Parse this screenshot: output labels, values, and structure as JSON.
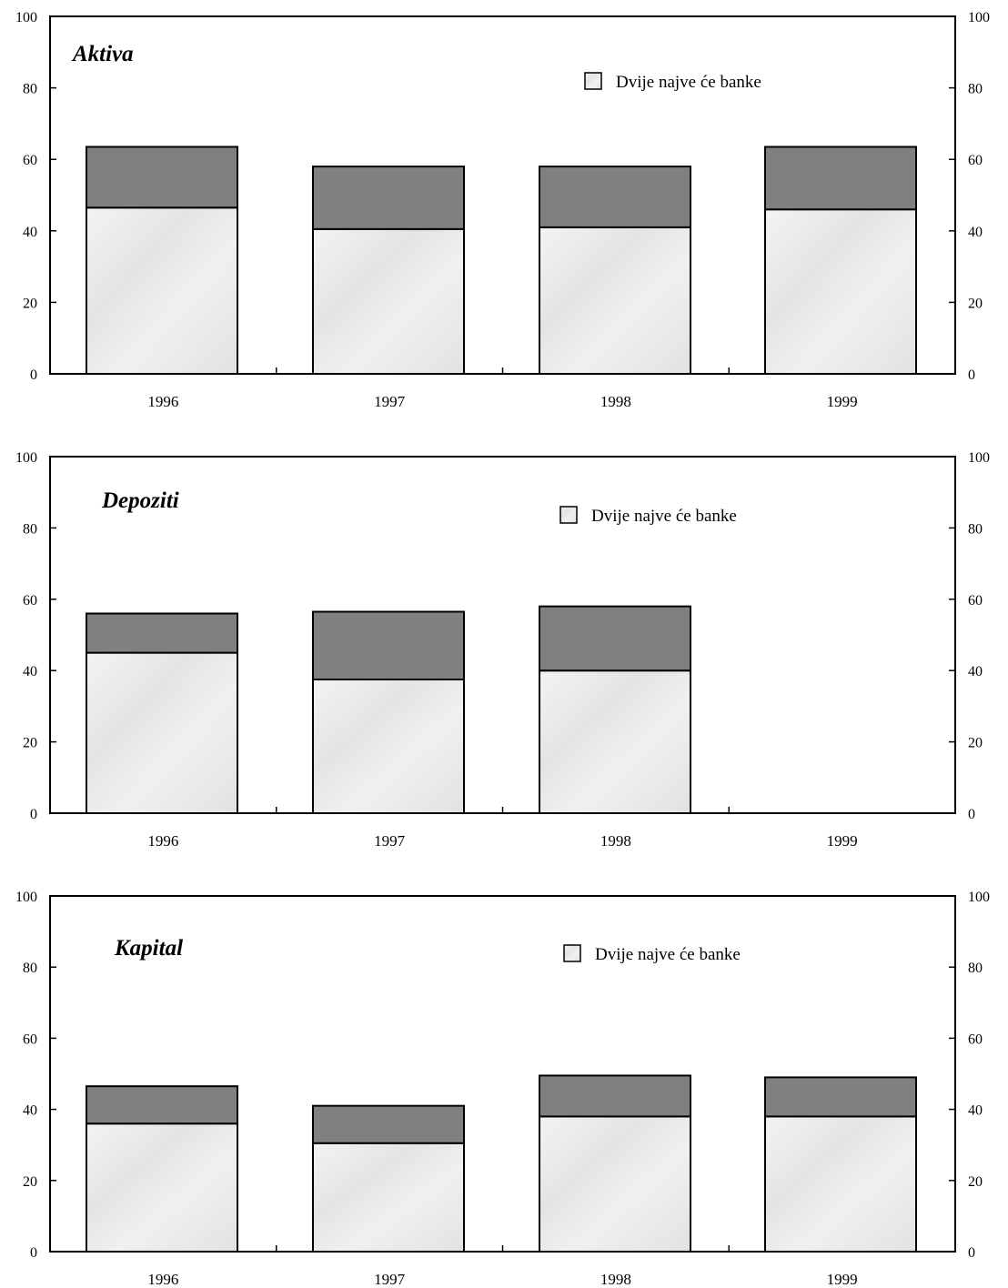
{
  "colors": {
    "top_segment": "#808080",
    "bottom_segment": "#ececec",
    "axis": "#000000"
  },
  "chart_data": [
    {
      "type": "bar",
      "stacked": true,
      "title": "Aktiva",
      "categories": [
        "1996",
        "1997",
        "1998",
        "1999"
      ],
      "legend": "Dvije najveće banke",
      "legend_display": "Dvije najve će banke",
      "legend_position": "top-right",
      "ylim": [
        0,
        100
      ],
      "yticks": [
        0,
        20,
        40,
        60,
        80,
        100
      ],
      "series": [
        {
          "values": [
            46.5,
            40.5,
            41,
            46
          ]
        },
        {
          "values": [
            17,
            17.5,
            17,
            17.5
          ]
        }
      ]
    },
    {
      "type": "bar",
      "stacked": true,
      "title": "Depoziti",
      "categories": [
        "1996",
        "1997",
        "1998",
        "1999"
      ],
      "legend": "Dvije najveće banke",
      "legend_display": "Dvije najve će banke",
      "legend_position": "top-right",
      "ylim": [
        0,
        100
      ],
      "yticks": [
        0,
        20,
        40,
        60,
        80,
        100
      ],
      "series": [
        {
          "values": [
            45,
            37.5,
            40,
            null
          ]
        },
        {
          "values": [
            11,
            19,
            18,
            null
          ]
        }
      ]
    },
    {
      "type": "bar",
      "stacked": true,
      "title": "Kapital",
      "categories": [
        "1996",
        "1997",
        "1998",
        "1999"
      ],
      "legend": "Dvije najveće banke",
      "legend_display": "Dvije najve će banke",
      "legend_position": "top-right",
      "ylim": [
        0,
        100
      ],
      "yticks": [
        0,
        20,
        40,
        60,
        80,
        100
      ],
      "series": [
        {
          "values": [
            36,
            30.5,
            38,
            38
          ]
        },
        {
          "values": [
            10.5,
            10.5,
            11.5,
            11
          ]
        }
      ]
    }
  ]
}
